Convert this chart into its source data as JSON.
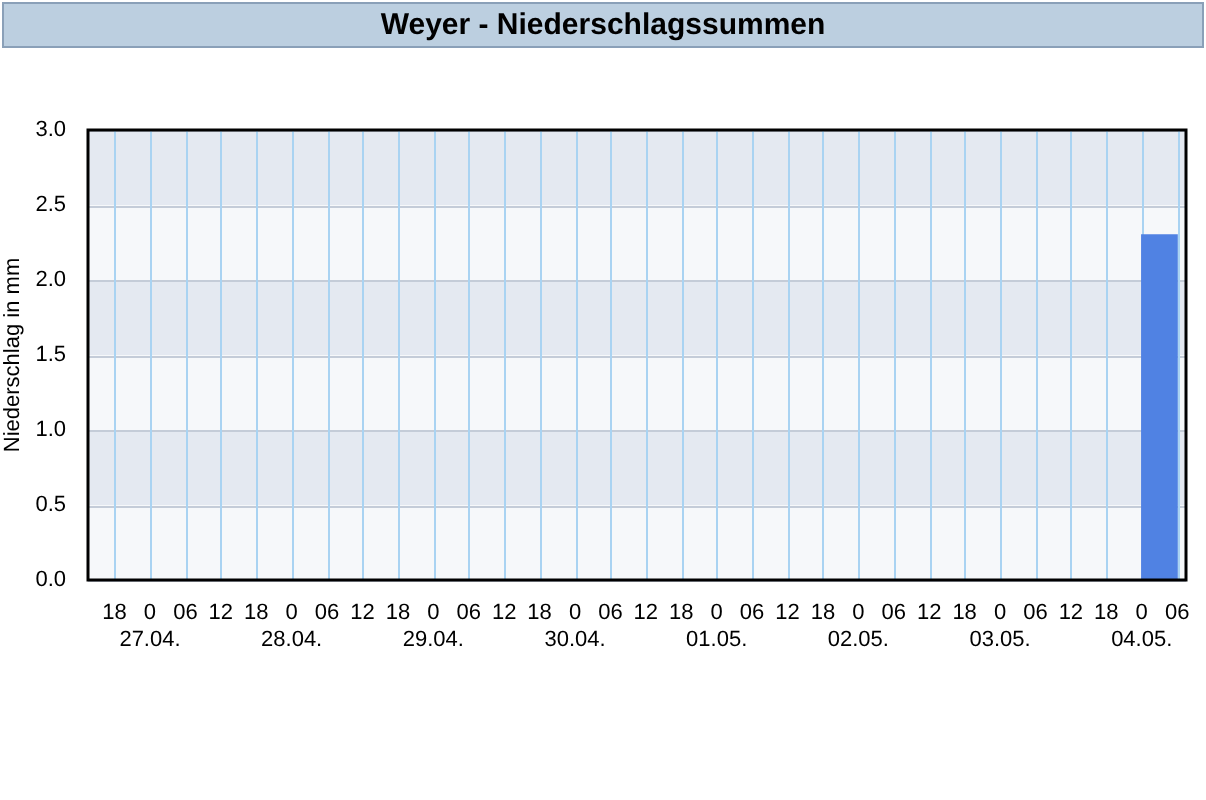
{
  "chart_data": {
    "type": "histogram",
    "title": "Weyer - Niederschlagssummen",
    "ylabel": "Niederschlag in mm",
    "bins": [
      "--04-26T18:00",
      "--04-27T00:00",
      "--04-27T06:00",
      "--04-27T12:00",
      "--04-27T18:00",
      "--04-28T00:00",
      "--04-28T06:00",
      "--04-28T12:00",
      "--04-28T18:00",
      "--04-29T00:00",
      "--04-29T06:00",
      "--04-29T12:00",
      "--04-29T18:00",
      "--04-30T00:00",
      "--04-30T06:00",
      "--04-30T12:00",
      "--04-30T18:00",
      "--05-01T00:00",
      "--05-01T06:00",
      "--05-01T12:00",
      "--05-01T18:00",
      "--05-02T00:00",
      "--05-02T06:00",
      "--05-02T12:00",
      "--05-02T18:00",
      "--05-03T00:00",
      "--05-03T06:00",
      "--05-03T12:00",
      "--05-03T18:00",
      "--05-04T00:00",
      "--05-04T06:00"
    ],
    "values": [
      0,
      0,
      0,
      0,
      0,
      0,
      0,
      0,
      0,
      0,
      0,
      0,
      0,
      0,
      0,
      0,
      0,
      0,
      0,
      0,
      0,
      0,
      0,
      0,
      0,
      0,
      0,
      0,
      0,
      2.3
    ],
    "color": "#5082e3",
    "xlim": [
      "--04-26T13:30",
      "--05-04T07:30"
    ],
    "xticks": [
      {
        "value": "--04-26T18:00",
        "label": "18"
      },
      {
        "value": "--04-27T00:00",
        "label": "0\n27.04."
      },
      {
        "value": "--04-27T06:00",
        "label": "06"
      },
      {
        "value": "--04-27T12:00",
        "label": "12"
      },
      {
        "value": "--04-27T18:00",
        "label": "18"
      },
      {
        "value": "--04-28T00:00",
        "label": "0\n28.04."
      },
      {
        "value": "--04-28T06:00",
        "label": "06"
      },
      {
        "value": "--04-28T12:00",
        "label": "12"
      },
      {
        "value": "--04-28T18:00",
        "label": "18"
      },
      {
        "value": "--04-29T00:00",
        "label": "0\n29.04."
      },
      {
        "value": "--04-29T06:00",
        "label": "06"
      },
      {
        "value": "--04-29T12:00",
        "label": "12"
      },
      {
        "value": "--04-29T18:00",
        "label": "18"
      },
      {
        "value": "--04-30T00:00",
        "label": "0\n30.04."
      },
      {
        "value": "--04-30T06:00",
        "label": "06"
      },
      {
        "value": "--04-30T12:00",
        "label": "12"
      },
      {
        "value": "--04-30T18:00",
        "label": "18"
      },
      {
        "value": "--05-01T00:00",
        "label": "0\n01.05."
      },
      {
        "value": "--05-01T06:00",
        "label": "06"
      },
      {
        "value": "--05-01T12:00",
        "label": "12"
      },
      {
        "value": "--05-01T18:00",
        "label": "18"
      },
      {
        "value": "--05-02T00:00",
        "label": "0\n02.05."
      },
      {
        "value": "--05-02T06:00",
        "label": "06"
      },
      {
        "value": "--05-02T12:00",
        "label": "12"
      },
      {
        "value": "--05-02T18:00",
        "label": "18"
      },
      {
        "value": "--05-03T00:00",
        "label": "0\n03.05."
      },
      {
        "value": "--05-03T06:00",
        "label": "06"
      },
      {
        "value": "--05-03T12:00",
        "label": "12"
      },
      {
        "value": "--05-03T18:00",
        "label": "18"
      },
      {
        "value": "--05-04T00:00",
        "label": "0\n04.05."
      },
      {
        "value": "--05-04T06:00",
        "label": "06"
      }
    ],
    "ylim": [
      0,
      3
    ],
    "yticks": [
      {
        "value": 0,
        "label": "0.0"
      },
      {
        "value": 0.5,
        "label": "0.5"
      },
      {
        "value": 1,
        "label": "1.0"
      },
      {
        "value": 1.5,
        "label": "1.5"
      },
      {
        "value": 2,
        "label": "2.0"
      },
      {
        "value": 2.5,
        "label": "2.5"
      },
      {
        "value": 3,
        "label": "3.0"
      }
    ],
    "grid": true
  }
}
